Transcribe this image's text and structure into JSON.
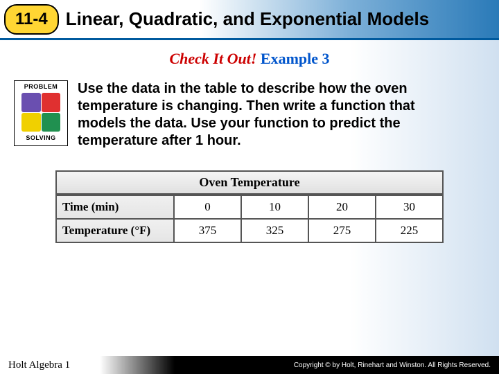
{
  "header": {
    "chapter_number": "11-4",
    "chapter_title": "Linear, Quadratic, and Exponential Models"
  },
  "check": {
    "red": "Check It Out!",
    "blue": "Example 3"
  },
  "problem_icon": {
    "top_label": "PROBLEM",
    "bottom_label": "SOLVING"
  },
  "instructions": "Use the data in the table to describe how the oven temperature is changing. Then write a function that models the data. Use your function to predict the temperature after 1 hour.",
  "table": {
    "title": "Oven Temperature",
    "row1_label": "Time (min)",
    "row2_label": "Temperature (°F)",
    "time": [
      "0",
      "10",
      "20",
      "30"
    ],
    "temp": [
      "375",
      "325",
      "275",
      "225"
    ],
    "colors": {
      "border": "#555555",
      "header_bg_top": "#f5f5f5",
      "header_bg_bot": "#e0e0e0",
      "cell_bg": "#ffffff",
      "label_bg_top": "#f0f0f0",
      "label_bg_bot": "#e5e5e5"
    },
    "title_fontsize": 18,
    "cell_fontsize": 17
  },
  "footer": {
    "left": "Holt Algebra 1",
    "right": "Copyright © by Holt, Rinehart and Winston. All Rights Reserved."
  }
}
